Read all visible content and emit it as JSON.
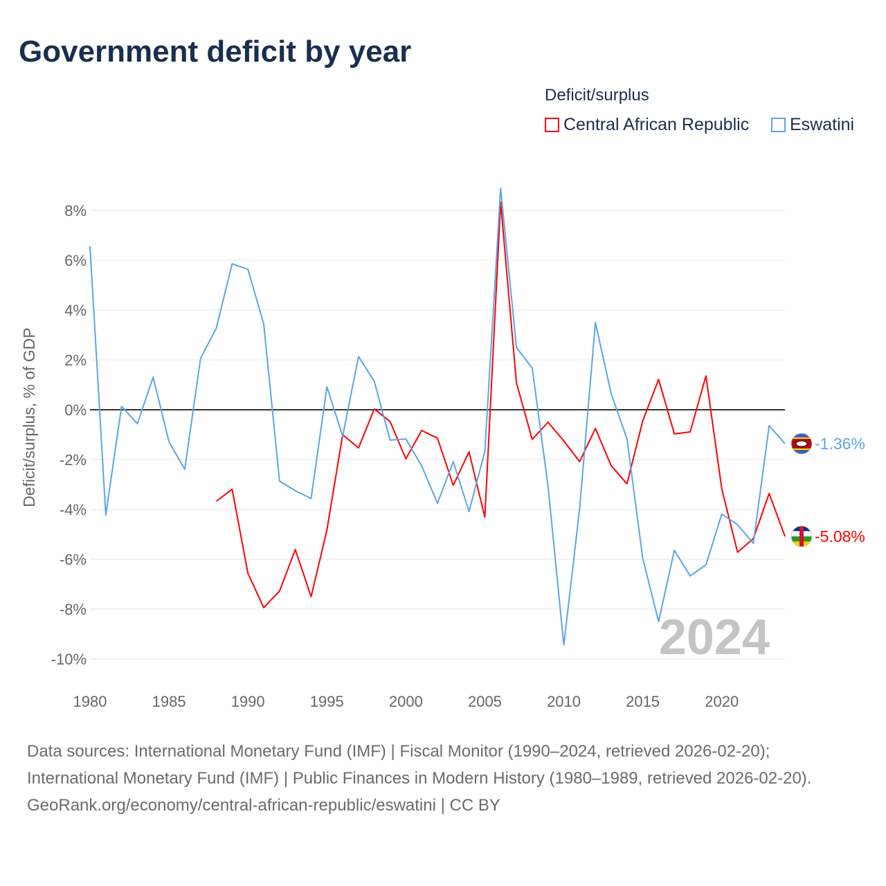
{
  "title": "Government deficit by year",
  "legend": {
    "title": "Deficit/surplus",
    "items": [
      {
        "label": "Central African Republic",
        "color": "#ff0000"
      },
      {
        "label": "Eswatini",
        "color": "#5ba4e8"
      }
    ]
  },
  "chart_data": {
    "type": "line",
    "title": "Government deficit by year",
    "xlabel": "",
    "ylabel": "Deficit/surplus, % of GDP",
    "xlim": [
      1980,
      2024
    ],
    "ylim": [
      -10,
      8
    ],
    "x_ticks": [
      "1980",
      "1985",
      "1990",
      "1995",
      "2000",
      "2005",
      "2010",
      "2015",
      "2020"
    ],
    "y_ticks": [
      "8%",
      "6%",
      "4%",
      "2%",
      "0%",
      "-2%",
      "-4%",
      "-6%",
      "-8%",
      "-10%"
    ],
    "y_tick_values": [
      8,
      6,
      4,
      2,
      0,
      -2,
      -4,
      -6,
      -8,
      -10
    ],
    "grid": true,
    "legend_position": "top-right",
    "year_watermark": "2024",
    "series": [
      {
        "name": "Central African Republic",
        "color": "#ff0000",
        "end_label": "-5.08%",
        "flag": "central-african-republic",
        "x": [
          1988,
          1989,
          1990,
          1991,
          1992,
          1993,
          1994,
          1995,
          1996,
          1997,
          1998,
          1999,
          2000,
          2001,
          2002,
          2003,
          2004,
          2005,
          2006,
          2007,
          2008,
          2009,
          2010,
          2011,
          2012,
          2013,
          2014,
          2015,
          2016,
          2017,
          2018,
          2019,
          2020,
          2021,
          2022,
          2023,
          2024
        ],
        "values": [
          -3.67,
          -3.19,
          -6.56,
          -7.94,
          -7.28,
          -5.61,
          -7.5,
          -4.83,
          -1.0,
          -1.53,
          0.03,
          -0.47,
          -1.97,
          -0.83,
          -1.14,
          -3.03,
          -1.69,
          -4.31,
          8.33,
          1.08,
          -1.19,
          -0.5,
          -1.25,
          -2.08,
          -0.75,
          -2.25,
          -2.97,
          -0.44,
          1.22,
          -0.97,
          -0.89,
          1.36,
          -3.17,
          -5.72,
          -5.17,
          -3.36,
          -5.08
        ]
      },
      {
        "name": "Eswatini",
        "color": "#5ba4e8",
        "end_label": "-1.36%",
        "flag": "eswatini",
        "x": [
          1980,
          1981,
          1982,
          1983,
          1984,
          1985,
          1986,
          1987,
          1988,
          1989,
          1990,
          1991,
          1992,
          1993,
          1994,
          1995,
          1996,
          1997,
          1998,
          1999,
          2000,
          2001,
          2002,
          2003,
          2004,
          2005,
          2006,
          2007,
          2008,
          2009,
          2010,
          2011,
          2012,
          2013,
          2014,
          2015,
          2016,
          2017,
          2018,
          2019,
          2020,
          2021,
          2022,
          2023,
          2024
        ],
        "values": [
          6.56,
          -4.22,
          0.14,
          -0.56,
          1.31,
          -1.28,
          -2.39,
          2.06,
          3.28,
          5.86,
          5.64,
          3.44,
          -2.86,
          -3.25,
          -3.56,
          0.92,
          -1.06,
          2.14,
          1.14,
          -1.22,
          -1.17,
          -2.25,
          -3.75,
          -2.08,
          -4.08,
          -1.67,
          8.89,
          2.5,
          1.67,
          -3.06,
          -9.44,
          -3.97,
          3.5,
          0.64,
          -1.17,
          -5.97,
          -8.5,
          -5.64,
          -6.67,
          -6.22,
          -4.19,
          -4.61,
          -5.36,
          -0.64,
          -1.36
        ]
      }
    ]
  },
  "footer": {
    "sources": "Data sources: International Monetary Fund (IMF) | Fiscal Monitor (1990–2024, retrieved 2026-02-20); International Monetary Fund (IMF) | Public Finances in Modern History (1980–1989, retrieved 2026-02-20).",
    "link": "GeoRank.org/economy/central-african-republic/eswatini | CC BY"
  }
}
